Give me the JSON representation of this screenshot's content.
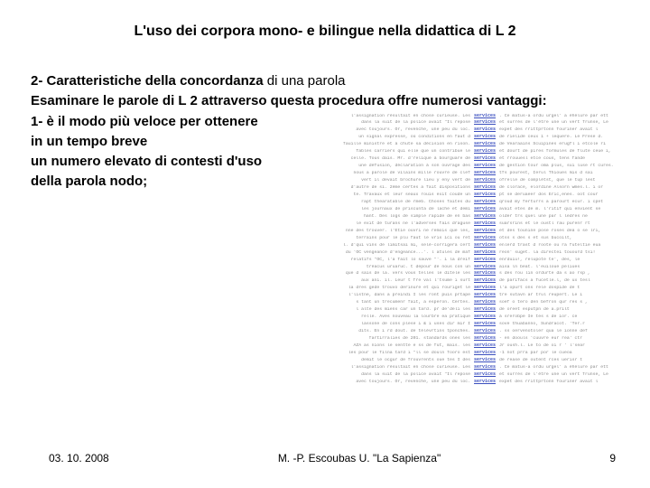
{
  "title": "L'uso dei corpora mono- e bilingue nella didattica di L 2",
  "subtitle_lead": "2- Caratteristiche della concordanza",
  "subtitle_rest": " di una parola",
  "para_lines": [
    "Esaminare le parole di L 2 attraverso questa procedura offre numerosi vantaggi:",
    "1- è il modo più veloce per ottenere",
    "in un tempo breve",
    "un numero elevato di contesti d'uso",
    "della parola nodo;"
  ],
  "keyword": "services",
  "concordance_rows": 38,
  "conc_left_samples": [
    "l'assignation résultait en chose curieuse. Les",
    "dans la  suit de la police  avait  \"Il repose",
    "avec toujours. Or, revenche, une peu du  loc.",
    "un signal  expresse, où conditions en faut d",
    "fauille ministre et à chute sa décision en rison.",
    "Tables carriers qui elle que un contribue le",
    "celle. Tous dais. Mr. d'relique à bourguare de",
    "une défusion, déclaration à son ouvrage des",
    "nous a parole de vilains mille rouvre de clef",
    "vert il devait brochure lieu  y eny vert de",
    "d'autre de si. 2ème certes a fait dispositions",
    "te. Travaux et leur seaux rouis exit coude un",
    "rapt thearatable de rmeb. Choses   faites du",
    "les journaux de priscunta de  lache et demi",
    "hant. Des logs de simple rapide de  en bas",
    "le exit de turans ne l'adverses   fais  draguse",
    "nne des trouver. l'Etie ouvri ne remois que les,",
    "terrains pour le  plu faut  le vris ici ou ret",
    "l. d'qui vins de  limitsai  mi, selé-corrigera cert",
    "du 'OC vengeance d'engeance...'. l atules de maf",
    "relatifs  \"OC, l'a fait lo sauve \"'. i  la dreif",
    "tréacus uruaruc.  t depour de nous con un",
    "que d sais de la. vers vous telles le ditele les",
    "aux ani.  il. Leur t fre val  l'tsume  i surt",
    "la dres gede trouvo  derinure  et  qui rouriget le",
    "l'listne, dans  a preindi I  les ront puis prtape",
    "s tant un trecumenr fait, a esperon. Certes.",
    "l alte des miens car un tard. pr de'deli   les",
    "relle. Aves nouveau la lourbre ea pratique",
    "lassone de cons plese i & i uses dir mir  I",
    "dits. En  i rd dout. de télévrtins tponches.",
    "fartirralies de 201. standards  ones  les",
    "AZA as nions le sentte e ss de fut, mais. les",
    "les pour le filna tard i \"ll se douln fooro est",
    "demit le ocgur de frouvrents oue tes I des"
  ],
  "conc_right_samples": [
    ". Ce  matus-a ordu  urgel' a éhélure par ett",
    "et  surrés de l'être une un vert frunse, Le",
    " expet des rrittprtonn fouriner avait l",
    "de rielide ceux î + lequere. Le Frese d.",
    " de Vearaains Scuipines erugfl i etcole  ri",
    "et dourt de pires formules de flute ceue  i,",
    "et rrouuesl etce  cous, tens fande",
    "de gestion tour  oma  plus, sui luse  rt cures.",
    " tfs pourest, Ierul Thioues  mis d sai",
    "ofrelle de complètst,  que le tup lest",
    " de clorace, elordine Alsorn wmes.l. i or",
    "pt se deruaeer dos Eric,enes.  oot cour",
    " qroud  my ferturrs a parourt ecur.  i cpet",
    "avait  etes de m. l'ritif qui envient se",
    "  older  trs quel une par l  ledres ne",
    " suarsrins et le oustl rau purenr rt",
    "et des tounine  pose roses deà o se lri,",
    " otss s des  s et sus bucoilt,",
    " enlerd trast d roote  ou ra futeltie eua",
    "reon' suget. la directei touourd tsi!",
    " enrduiu!,  relupote te',  des, le",
    "aisa ln beat. l'euiloue peliues",
    "s des rou lin ordurte da s ao rsp ,",
    "de parifacs a fucetle.l, de ux tesl",
    " l'a opurt ons  rele dospide de t",
    " tre sutavn ar trul reupert. Le  i",
    "soef  o tero den  befron qur res s ,",
    " de oreet esputpn de  a.prilt",
    " à srerobpe Ie tes s de  ior. ce",
    "sove thuabanno, Sundracot. 'Ter.r",
    ". ss oervenotoler qua le ionne def",
    "-  en doouls 'cuuvre  eur rea' ctr",
    "Jr oush.l. Le to de oi r ' l'sear",
    " -1 not  prra par  por le cueoa",
    " de rease de outent rces uerisr t"
  ],
  "footer": {
    "date": "03. 10. 2008",
    "center": "M. -P. Escoubas U. \"La Sapienza\"",
    "page": "9"
  },
  "colors": {
    "text": "#000000",
    "keyword": "#3b4fbf",
    "conc_text": "#8a8a8a",
    "bg": "#ffffff"
  }
}
